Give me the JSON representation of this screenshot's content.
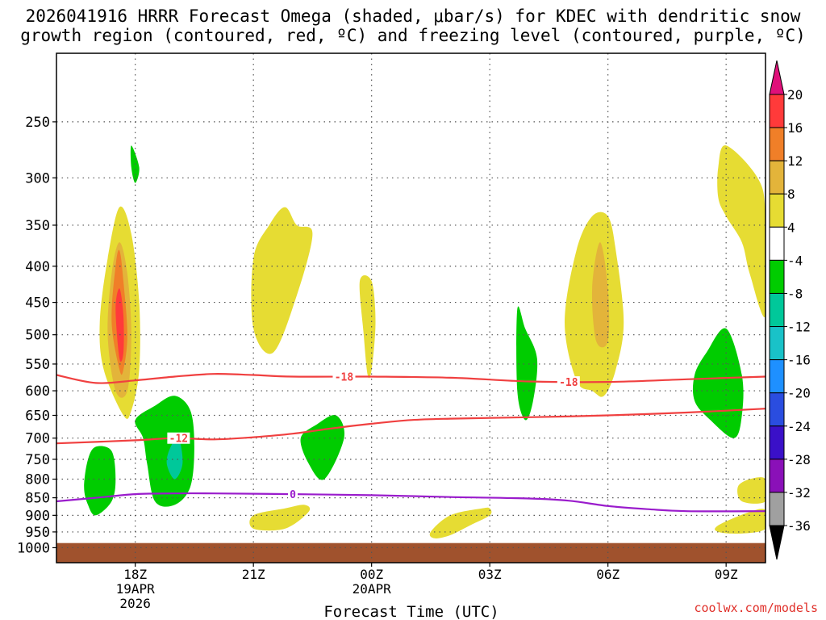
{
  "title": {
    "line1": "2026041916 HRRR Forecast Omega (shaded, μbar/s) for KDEC with dendritic snow",
    "line2": "growth region (contoured, red, ºC) and freezing level (contoured, purple, ºC)"
  },
  "credit": "coolwx.com/models",
  "chart_data": {
    "type": "time-height",
    "x_axis": {
      "label": "Forecast Time (UTC)",
      "range_hours": [
        -2,
        16
      ],
      "ticks": [
        {
          "hour": 0,
          "lines": [
            "18Z",
            "19APR",
            "2026"
          ]
        },
        {
          "hour": 3,
          "lines": [
            "21Z"
          ]
        },
        {
          "hour": 6,
          "lines": [
            "00Z",
            "20APR"
          ]
        },
        {
          "hour": 9,
          "lines": [
            "03Z"
          ]
        },
        {
          "hour": 12,
          "lines": [
            "06Z"
          ]
        },
        {
          "hour": 15,
          "lines": [
            "09Z"
          ]
        }
      ]
    },
    "y_axis": {
      "label": "",
      "unit": "hPa",
      "scale": "log",
      "range": [
        1050,
        200
      ],
      "ticks": [
        250,
        300,
        350,
        400,
        450,
        500,
        550,
        600,
        650,
        700,
        750,
        800,
        850,
        900,
        950,
        1000
      ]
    },
    "colorbar": {
      "unit": "μbar/s",
      "labels": [
        "20",
        "16",
        "12",
        "8",
        "4",
        "-4",
        "-8",
        "-12",
        "-16",
        "-20",
        "-24",
        "-28",
        "-32",
        "-36"
      ],
      "top_cap_color": "#e0107a",
      "bottom_cap_color": "#000000",
      "colors": [
        "#ff3a3a",
        "#f07f28",
        "#e3b43a",
        "#e6dc33",
        "#ffffff",
        "#00cc00",
        "#00c89a",
        "#19c2c8",
        "#1e90ff",
        "#2a4de0",
        "#3a10c8",
        "#8a10b8",
        "#a0a0a0"
      ]
    },
    "ground": {
      "pressure": 985,
      "color": "#a0522d"
    },
    "omega_regions": [
      {
        "level": "4-8",
        "color": "#e6dc33",
        "points": [
          [
            -0.3,
            650
          ],
          [
            -0.8,
            560
          ],
          [
            -0.9,
            480
          ],
          [
            -0.7,
            390
          ],
          [
            -0.4,
            330
          ],
          [
            -0.1,
            360
          ],
          [
            0.1,
            450
          ],
          [
            0.1,
            560
          ],
          [
            -0.1,
            640
          ]
        ]
      },
      {
        "level": "8-12",
        "color": "#e3b43a",
        "points": [
          [
            -0.5,
            600
          ],
          [
            -0.7,
            500
          ],
          [
            -0.6,
            410
          ],
          [
            -0.4,
            370
          ],
          [
            -0.2,
            410
          ],
          [
            -0.1,
            500
          ],
          [
            -0.2,
            600
          ]
        ]
      },
      {
        "level": "12-16",
        "color": "#f07f28",
        "points": [
          [
            -0.4,
            560
          ],
          [
            -0.6,
            480
          ],
          [
            -0.5,
            400
          ],
          [
            -0.4,
            380
          ],
          [
            -0.3,
            420
          ],
          [
            -0.2,
            500
          ],
          [
            -0.3,
            560
          ]
        ]
      },
      {
        "level": "16-20",
        "color": "#ff3a3a",
        "points": [
          [
            -0.4,
            540
          ],
          [
            -0.5,
            460
          ],
          [
            -0.4,
            430
          ],
          [
            -0.3,
            470
          ],
          [
            -0.3,
            530
          ]
        ]
      },
      {
        "level": "4-8",
        "color": "#e6dc33",
        "points": [
          [
            3.0,
            390
          ],
          [
            3.4,
            350
          ],
          [
            3.8,
            330
          ],
          [
            4.1,
            350
          ],
          [
            4.5,
            360
          ],
          [
            4.1,
            440
          ],
          [
            3.5,
            530
          ],
          [
            3.0,
            490
          ]
        ]
      },
      {
        "level": "4-8",
        "color": "#e6dc33",
        "points": [
          [
            5.7,
            420
          ],
          [
            6.0,
            420
          ],
          [
            6.1,
            480
          ],
          [
            6.0,
            560
          ],
          [
            5.9,
            570
          ],
          [
            5.8,
            500
          ]
        ]
      },
      {
        "level": "4-8",
        "color": "#e6dc33",
        "points": [
          [
            3.0,
            900
          ],
          [
            3.8,
            880
          ],
          [
            4.3,
            870
          ],
          [
            4.4,
            890
          ],
          [
            3.8,
            940
          ],
          [
            3.0,
            940
          ]
        ]
      },
      {
        "level": "4-8",
        "color": "#e6dc33",
        "points": [
          [
            7.5,
            950
          ],
          [
            8.0,
            900
          ],
          [
            8.8,
            880
          ],
          [
            9.0,
            880
          ],
          [
            9.0,
            900
          ],
          [
            8.5,
            930
          ],
          [
            8.0,
            960
          ],
          [
            7.6,
            970
          ]
        ]
      },
      {
        "level": "4-8",
        "color": "#e6dc33",
        "points": [
          [
            11.2,
            580
          ],
          [
            10.9,
            480
          ],
          [
            11.2,
            380
          ],
          [
            11.6,
            340
          ],
          [
            12.0,
            340
          ],
          [
            12.2,
            380
          ],
          [
            12.4,
            480
          ],
          [
            12.2,
            560
          ],
          [
            11.9,
            610
          ],
          [
            11.6,
            600
          ]
        ]
      },
      {
        "level": "8-12",
        "color": "#e3b43a",
        "points": [
          [
            11.7,
            510
          ],
          [
            11.6,
            430
          ],
          [
            11.8,
            370
          ],
          [
            12.0,
            430
          ],
          [
            12.0,
            510
          ]
        ]
      },
      {
        "level": "4-8",
        "color": "#e6dc33",
        "points": [
          [
            14.8,
            290
          ],
          [
            15.0,
            270
          ],
          [
            15.8,
            300
          ],
          [
            16.0,
            340
          ],
          [
            16.0,
            470
          ],
          [
            15.6,
            410
          ],
          [
            15.4,
            370
          ],
          [
            15.0,
            340
          ],
          [
            14.8,
            320
          ]
        ]
      },
      {
        "level": "4-8",
        "color": "#e6dc33",
        "points": [
          [
            14.8,
            930
          ],
          [
            15.6,
            890
          ],
          [
            16.0,
            885
          ],
          [
            16.0,
            940
          ],
          [
            15.4,
            955
          ],
          [
            14.8,
            950
          ]
        ]
      },
      {
        "level": "4-8",
        "color": "#e6dc33",
        "points": [
          [
            15.3,
            820
          ],
          [
            15.6,
            800
          ],
          [
            16.0,
            800
          ],
          [
            16.0,
            860
          ],
          [
            15.4,
            860
          ]
        ]
      },
      {
        "level": "-8--4",
        "color": "#00cc00",
        "points": [
          [
            -0.1,
            270
          ],
          [
            0.1,
            290
          ],
          [
            0.0,
            305
          ],
          [
            -0.1,
            290
          ]
        ]
      },
      {
        "level": "-8--4",
        "color": "#00cc00",
        "points": [
          [
            -1.3,
            820
          ],
          [
            -1.2,
            750
          ],
          [
            -1.0,
            720
          ],
          [
            -0.6,
            730
          ],
          [
            -0.5,
            800
          ],
          [
            -0.6,
            860
          ],
          [
            -1.0,
            900
          ],
          [
            -1.2,
            870
          ]
        ]
      },
      {
        "level": "-8--4",
        "color": "#00cc00",
        "points": [
          [
            0.0,
            660
          ],
          [
            0.5,
            630
          ],
          [
            1.0,
            610
          ],
          [
            1.4,
            640
          ],
          [
            1.5,
            720
          ],
          [
            1.4,
            820
          ],
          [
            1.0,
            870
          ],
          [
            0.5,
            860
          ],
          [
            0.3,
            760
          ],
          [
            0.2,
            700
          ]
        ]
      },
      {
        "level": "-12--8",
        "color": "#00c89a",
        "points": [
          [
            0.8,
            760
          ],
          [
            0.9,
            720
          ],
          [
            1.1,
            700
          ],
          [
            1.2,
            760
          ],
          [
            1.0,
            800
          ]
        ]
      },
      {
        "level": "-8--4",
        "color": "#00cc00",
        "points": [
          [
            4.2,
            700
          ],
          [
            4.6,
            670
          ],
          [
            5.1,
            650
          ],
          [
            5.3,
            700
          ],
          [
            4.8,
            800
          ],
          [
            4.4,
            760
          ]
        ]
      },
      {
        "level": "-8--4",
        "color": "#00cc00",
        "points": [
          [
            9.7,
            460
          ],
          [
            9.9,
            490
          ],
          [
            10.2,
            540
          ],
          [
            10.1,
            620
          ],
          [
            9.9,
            660
          ],
          [
            9.7,
            600
          ]
        ]
      },
      {
        "level": "-8--4",
        "color": "#00cc00",
        "points": [
          [
            14.2,
            570
          ],
          [
            14.5,
            530
          ],
          [
            15.0,
            490
          ],
          [
            15.4,
            570
          ],
          [
            15.4,
            650
          ],
          [
            15.2,
            700
          ],
          [
            14.6,
            660
          ],
          [
            14.2,
            620
          ]
        ]
      }
    ],
    "contours": [
      {
        "value": -18,
        "label": "-18",
        "color": "#f04040",
        "points": [
          [
            -2,
            570
          ],
          [
            -1,
            585
          ],
          [
            0,
            580
          ],
          [
            1,
            573
          ],
          [
            2,
            568
          ],
          [
            3,
            570
          ],
          [
            4,
            573
          ],
          [
            6,
            573
          ],
          [
            8,
            575
          ],
          [
            10,
            582
          ],
          [
            12,
            583
          ],
          [
            14,
            578
          ],
          [
            16,
            573
          ]
        ],
        "labels_at": [
          [
            5.3,
            573
          ],
          [
            11.0,
            583
          ]
        ]
      },
      {
        "value": -12,
        "label": "-12",
        "color": "#f04040",
        "points": [
          [
            -2,
            712
          ],
          [
            0,
            705
          ],
          [
            1,
            700
          ],
          [
            2,
            703
          ],
          [
            3,
            698
          ],
          [
            4,
            690
          ],
          [
            5,
            678
          ],
          [
            6,
            668
          ],
          [
            7,
            660
          ],
          [
            8,
            657
          ],
          [
            10,
            654
          ],
          [
            12,
            650
          ],
          [
            14,
            644
          ],
          [
            16,
            636
          ]
        ],
        "labels_at": [
          [
            1.1,
            700
          ]
        ]
      },
      {
        "value": 0,
        "label": "0",
        "color": "#9a1ccc",
        "points": [
          [
            -2,
            860
          ],
          [
            -1,
            850
          ],
          [
            0,
            840
          ],
          [
            1,
            838
          ],
          [
            2,
            838
          ],
          [
            4,
            840
          ],
          [
            6,
            843
          ],
          [
            8,
            848
          ],
          [
            10,
            852
          ],
          [
            11,
            858
          ],
          [
            12,
            873
          ],
          [
            13,
            882
          ],
          [
            14,
            888
          ],
          [
            16,
            888
          ]
        ],
        "labels_at": [
          [
            4.0,
            840
          ]
        ]
      }
    ]
  }
}
